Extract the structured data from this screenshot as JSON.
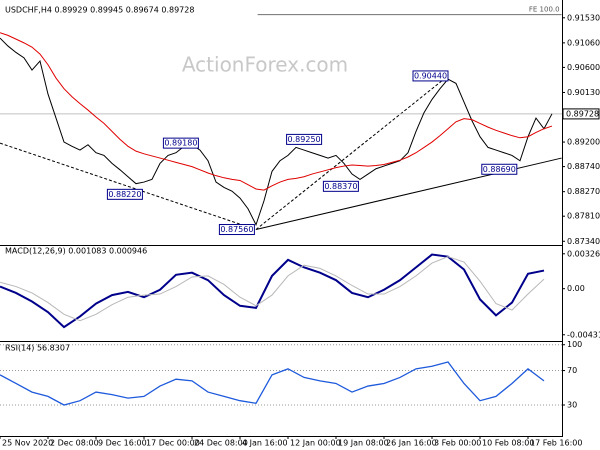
{
  "chart_data": [
    {
      "type": "line",
      "title": "USDCHF,H4  0.89929 0.89945 0.89674 0.89728",
      "watermark": "ActionForex.com",
      "x": [
        0,
        5,
        10,
        15,
        20,
        25,
        30,
        35,
        40,
        45,
        50,
        55,
        60,
        65,
        70,
        75,
        80,
        85,
        90,
        95,
        100,
        105,
        110,
        115,
        120,
        125,
        130,
        135,
        140,
        145,
        150,
        155,
        160,
        165,
        170,
        175,
        180,
        185,
        190,
        195,
        200,
        205,
        210,
        215,
        220,
        225,
        230,
        235,
        240,
        245,
        250,
        255,
        260,
        265,
        270,
        275,
        280,
        285,
        290,
        295,
        300,
        305,
        310,
        315,
        320,
        325,
        330,
        335,
        340,
        345
      ],
      "xlim": [
        0,
        351.25
      ],
      "ylim": [
        0.8727,
        0.9177
      ],
      "yticks": [
        {
          "value": 0.9153,
          "label": "0.91530"
        },
        {
          "value": 0.9106,
          "label": "0.91060"
        },
        {
          "value": 0.906,
          "label": "0.90600"
        },
        {
          "value": 0.9013,
          "label": "0.90130"
        },
        {
          "value": 0.892,
          "label": "0.89200"
        },
        {
          "value": 0.8874,
          "label": "0.88740"
        },
        {
          "value": 0.8827,
          "label": "0.88270"
        },
        {
          "value": 0.8781,
          "label": "0.87810"
        },
        {
          "value": 0.8734,
          "label": "0.87340"
        }
      ],
      "series": [
        {
          "color": "#000000",
          "values": [
            0.9115,
            0.91,
            0.9088,
            0.9078,
            0.9055,
            0.9072,
            0.901,
            0.8965,
            0.892,
            0.8912,
            0.8905,
            0.8915,
            0.89,
            0.8895,
            0.888,
            0.8868,
            0.8855,
            0.8842,
            0.8845,
            0.885,
            0.888,
            0.8895,
            0.89,
            0.8912,
            0.8915,
            0.8905,
            0.8885,
            0.8845,
            0.8835,
            0.8828,
            0.8815,
            0.8795,
            0.8765,
            0.881,
            0.8865,
            0.8885,
            0.8895,
            0.891,
            0.8905,
            0.89,
            0.8895,
            0.889,
            0.8895,
            0.888,
            0.886,
            0.885,
            0.886,
            0.887,
            0.8875,
            0.888,
            0.8885,
            0.89,
            0.894,
            0.8975,
            0.9,
            0.902,
            0.9038,
            0.903,
            0.8995,
            0.896,
            0.893,
            0.891,
            0.8905,
            0.89,
            0.8895,
            0.8885,
            0.893,
            0.8965,
            0.8945,
            0.8973
          ]
        },
        {
          "color": "#e00000",
          "values": [
            0.9125,
            0.912,
            0.9113,
            0.9106,
            0.9098,
            0.9085,
            0.9065,
            0.904,
            0.902,
            0.9005,
            0.8992,
            0.898,
            0.8967,
            0.8955,
            0.894,
            0.8925,
            0.8912,
            0.8903,
            0.8898,
            0.8894,
            0.889,
            0.8886,
            0.8882,
            0.8878,
            0.8874,
            0.8868,
            0.8862,
            0.8857,
            0.8853,
            0.885,
            0.8848,
            0.884,
            0.8832,
            0.883,
            0.8838,
            0.8845,
            0.885,
            0.8852,
            0.8855,
            0.886,
            0.8864,
            0.8868,
            0.8872,
            0.8875,
            0.8877,
            0.8876,
            0.8875,
            0.8876,
            0.8878,
            0.8882,
            0.8886,
            0.8892,
            0.89,
            0.891,
            0.892,
            0.8932,
            0.8945,
            0.8958,
            0.8964,
            0.8962,
            0.8955,
            0.8948,
            0.8942,
            0.8937,
            0.8932,
            0.8928,
            0.893,
            0.8938,
            0.8945,
            0.895
          ]
        }
      ],
      "last_price": {
        "value": 0.89728,
        "label": "0.89728"
      },
      "price_labels": [
        {
          "value": 0.8822,
          "label": "0.88220",
          "x": 89
        },
        {
          "value": 0.8918,
          "label": "0.89180",
          "x": 124
        },
        {
          "value": 0.8756,
          "label": "0.87560",
          "x": 159
        },
        {
          "value": 0.8925,
          "label": "0.89250",
          "x": 201
        },
        {
          "value": 0.8837,
          "label": "0.88370",
          "x": 224
        },
        {
          "value": 0.9044,
          "label": "0.90440",
          "x": 280
        },
        {
          "value": 0.8869,
          "label": "0.88690",
          "x": 323
        }
      ],
      "lines": [
        {
          "x": [
            0,
            160
          ],
          "y": [
            0.8918,
            0.8756
          ],
          "style": "dashed"
        },
        {
          "x": [
            160,
            280
          ],
          "y": [
            0.8756,
            0.9044
          ],
          "style": "dashed"
        },
        {
          "x": [
            160,
            351
          ],
          "y": [
            0.8756,
            0.889
          ],
          "style": "solid"
        }
      ],
      "fe_line": {
        "label": "FE 100.0",
        "y": 0.9159,
        "x": [
          161,
          351
        ]
      }
    },
    {
      "type": "line",
      "title": "MACD(12,26,9) 0.001083 0.000946",
      "x": [
        0,
        10,
        20,
        30,
        40,
        50,
        60,
        70,
        80,
        90,
        100,
        110,
        120,
        130,
        140,
        150,
        160,
        170,
        180,
        190,
        200,
        210,
        220,
        230,
        240,
        250,
        260,
        270,
        280,
        290,
        300,
        310,
        320,
        330,
        340
      ],
      "xlim": [
        0,
        351.25
      ],
      "ylim": [
        -0.0049,
        0.004
      ],
      "yticks": [
        0.003269,
        {
          "value": 0,
          "label": "0.00"
        },
        -0.004316
      ],
      "grid": false,
      "series": [
        {
          "color": "#00008b",
          "values": [
            0.0002,
            -0.0004,
            -0.0012,
            -0.0022,
            -0.0036,
            -0.0026,
            -0.0014,
            -0.0006,
            -0.0003,
            -0.0008,
            -0.0001,
            0.0013,
            0.0015,
            0.0008,
            -0.0006,
            -0.0016,
            -0.0018,
            0.0012,
            0.0027,
            0.002,
            0.0015,
            0.0008,
            -0.0004,
            -0.0008,
            -0.0001,
            0.0008,
            0.002,
            0.0032,
            0.003,
            0.0018,
            -0.001,
            -0.0025,
            -0.0013,
            0.0014,
            0.0017
          ]
        },
        {
          "color": "#b8b8b8",
          "values": [
            0.0006,
            0.0002,
            -0.0004,
            -0.0013,
            -0.0024,
            -0.003,
            -0.0024,
            -0.0015,
            -0.0008,
            -0.0006,
            -0.0005,
            0.0002,
            0.0011,
            0.0012,
            0.0004,
            -0.0008,
            -0.0016,
            -0.0006,
            0.0012,
            0.0022,
            0.0019,
            0.0012,
            0.0003,
            -0.0005,
            -0.0005,
            0.0002,
            0.0012,
            0.0024,
            0.003,
            0.0025,
            0.0007,
            -0.0014,
            -0.002,
            -0.0005,
            0.0009
          ]
        }
      ]
    },
    {
      "type": "line",
      "title": "RSI(14) 56.8307",
      "x": [
        0,
        10,
        20,
        30,
        40,
        50,
        60,
        70,
        80,
        90,
        100,
        110,
        120,
        130,
        140,
        150,
        160,
        170,
        180,
        190,
        200,
        210,
        220,
        230,
        240,
        250,
        260,
        270,
        280,
        290,
        300,
        310,
        320,
        330,
        340
      ],
      "xlim": [
        0,
        351.25
      ],
      "ylim": [
        -6,
        102
      ],
      "yticks": [
        100,
        70,
        30
      ],
      "grid": true,
      "xticks": [
        {
          "value": 0,
          "label": "25 Nov 2020"
        },
        {
          "value": 30,
          "label": "2 Dec 08:00"
        },
        {
          "value": 60,
          "label": "9 Dec 16:00"
        },
        {
          "value": 90,
          "label": "17 Dec 00:00"
        },
        {
          "value": 120,
          "label": "24 Dec 08:00"
        },
        {
          "value": 150,
          "label": "4 Jan 16:00"
        },
        {
          "value": 180,
          "label": "12 Jan 00:00"
        },
        {
          "value": 210,
          "label": "19 Jan 08:00"
        },
        {
          "value": 240,
          "label": "26 Jan 16:00"
        },
        {
          "value": 270,
          "label": "3 Feb 00:00"
        },
        {
          "value": 300,
          "label": "10 Feb 08:00"
        },
        {
          "value": 330,
          "label": "17 Feb 16:00"
        }
      ],
      "series": [
        {
          "color": "#1e5adc",
          "values": [
            65,
            55,
            45,
            40,
            30,
            35,
            45,
            42,
            38,
            40,
            52,
            60,
            58,
            45,
            40,
            35,
            32,
            65,
            72,
            62,
            58,
            55,
            45,
            52,
            55,
            62,
            72,
            75,
            80,
            55,
            35,
            40,
            55,
            72,
            58
          ]
        }
      ]
    }
  ]
}
